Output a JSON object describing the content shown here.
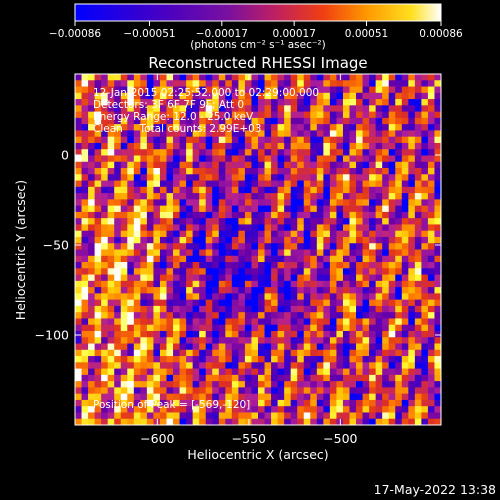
{
  "chart_data": {
    "type": "heatmap",
    "title": "Reconstructed RHESSI Image",
    "xlabel": "Heliocentric X (arcsec)",
    "ylabel": "Heliocentric Y (arcsec)",
    "xlim": [
      -645,
      -445
    ],
    "ylim": [
      -150,
      45
    ],
    "xticks": [
      -600,
      -550,
      -500
    ],
    "xtick_labels": [
      "−600",
      "−550",
      "−500"
    ],
    "yticks": [
      0,
      -50,
      -100
    ],
    "ytick_labels": [
      "0",
      "−50",
      "−100"
    ],
    "colorbar": {
      "range": [
        -0.00086,
        0.00086
      ],
      "ticks": [
        -0.00086,
        -0.00051,
        -0.00017,
        0.00017,
        0.00051,
        0.00086
      ],
      "tick_labels": [
        "−0.00086",
        "−0.00051",
        "−0.00017",
        "0.00017",
        "0.00051",
        "0.00086"
      ],
      "units": "(photons cm⁻² s⁻¹ asec⁻²)",
      "colormap": [
        "#0000ff",
        "#3c00c8",
        "#6a00a8",
        "#b0209a",
        "#e0301e",
        "#ff7a00",
        "#ffc000",
        "#ffff40",
        "#ffffff"
      ]
    },
    "annotations": [
      "12-Jan-2015 02:25:52.000 to 02:29:00.000",
      "Detectors: 3F 6F 7F 9F; Att 0",
      "Energy Range: 12.0 - 25.0 keV",
      "Clean     Total counts: 2.99E+03",
      "Position of Peak = [-569,-120]"
    ],
    "peak": {
      "x": -569,
      "y": -120
    },
    "timestamp": "17-May-2022 13:38"
  }
}
